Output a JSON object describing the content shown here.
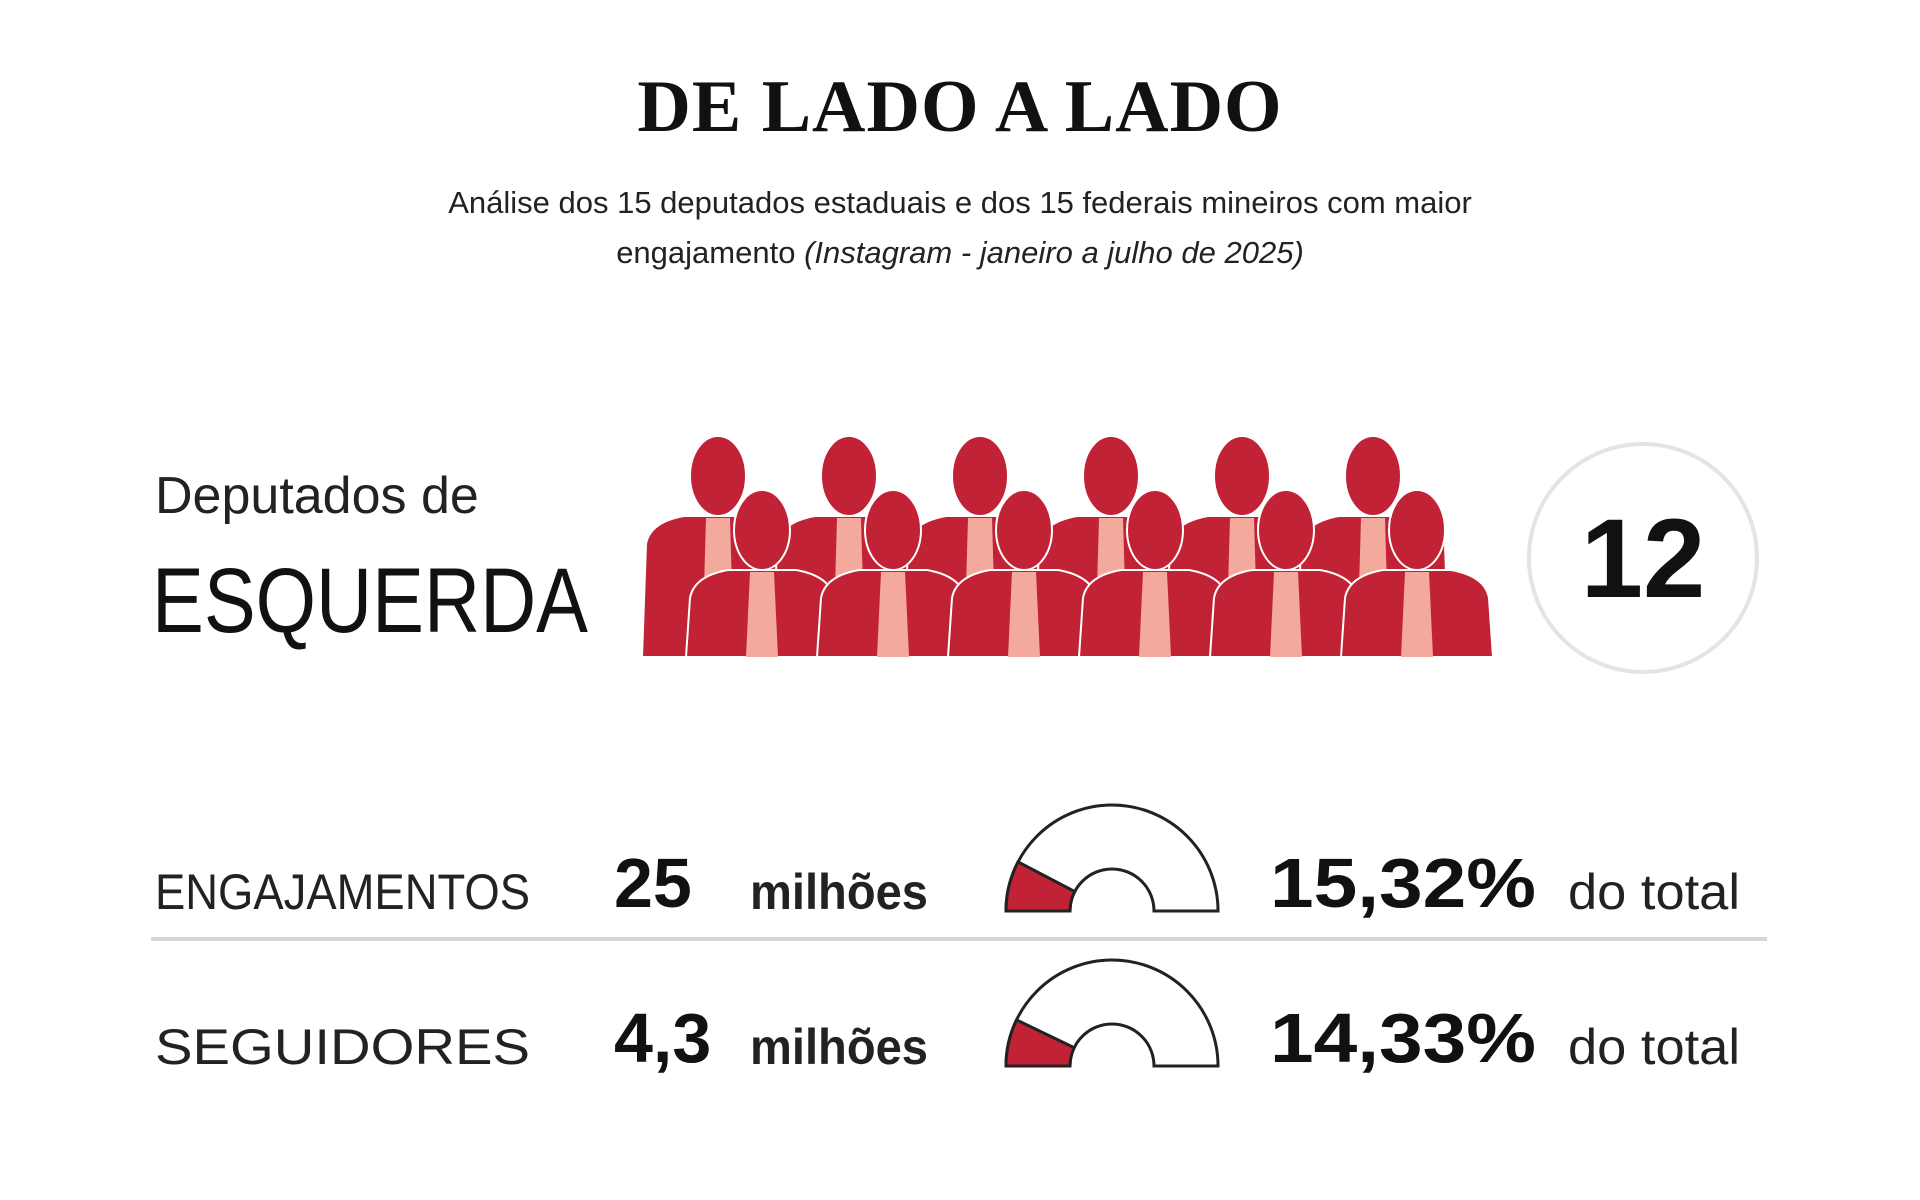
{
  "title": "DE LADO A LADO",
  "subtitle": "Análise dos 15 deputados estaduais e dos 15 federais mineiros com maior engajamento",
  "subtitle_note": "(Instagram - janeiro a julho de 2025)",
  "group": {
    "label_top": "Deputados de",
    "label_main": "ESQUERDA",
    "count": 12
  },
  "metrics": [
    {
      "name": "ENGAJAMENTOS",
      "amount": "25",
      "unit": "milhões",
      "percent": 15.32,
      "percent_label": "15,32%",
      "suffix": "do total"
    },
    {
      "name": "SEGUIDORES",
      "amount": "4,3",
      "unit": "milhões",
      "percent": 14.33,
      "percent_label": "14,33%",
      "suffix": "do total"
    }
  ]
}
